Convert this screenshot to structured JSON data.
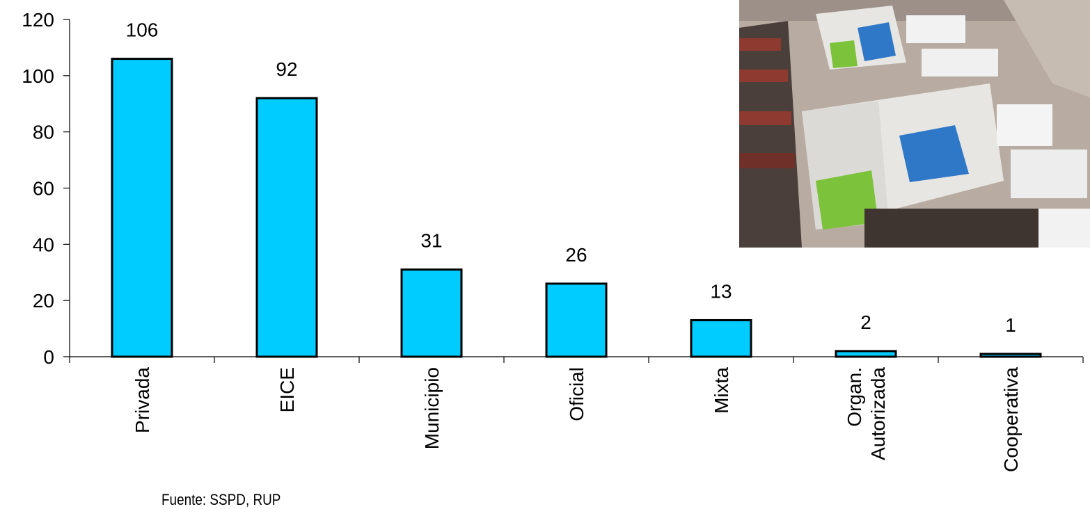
{
  "chart_data": {
    "type": "bar",
    "categories": [
      "Privada",
      "EICE",
      "Municipio",
      "Oficial",
      "Mixta",
      "Organ.\nAutorizada",
      "Cooperativa"
    ],
    "values": [
      106,
      92,
      31,
      26,
      13,
      2,
      1
    ],
    "data_labels": [
      "106",
      "92",
      "31",
      "26",
      "13",
      "2",
      "1"
    ],
    "title": "",
    "xlabel": "",
    "ylabel": "",
    "ylim": [
      0,
      120
    ],
    "yticks": [
      "0",
      "20",
      "40",
      "60",
      "80",
      "100",
      "120"
    ],
    "grid": false,
    "legend": "none",
    "bar_color": "#00ccff",
    "bar_edge_color": "#000000"
  },
  "source_note": "Fuente: SSPD, RUP",
  "photo": {
    "icon": "garbage-trucks-photo",
    "colors": {
      "pavement": "#b8aca2",
      "truck_body": "#e8e6e2",
      "truck_blue": "#2f78c8",
      "truck_green": "#7cc23a",
      "shadow": "#4a3f3a",
      "roof_red": "#8e3a30"
    }
  }
}
